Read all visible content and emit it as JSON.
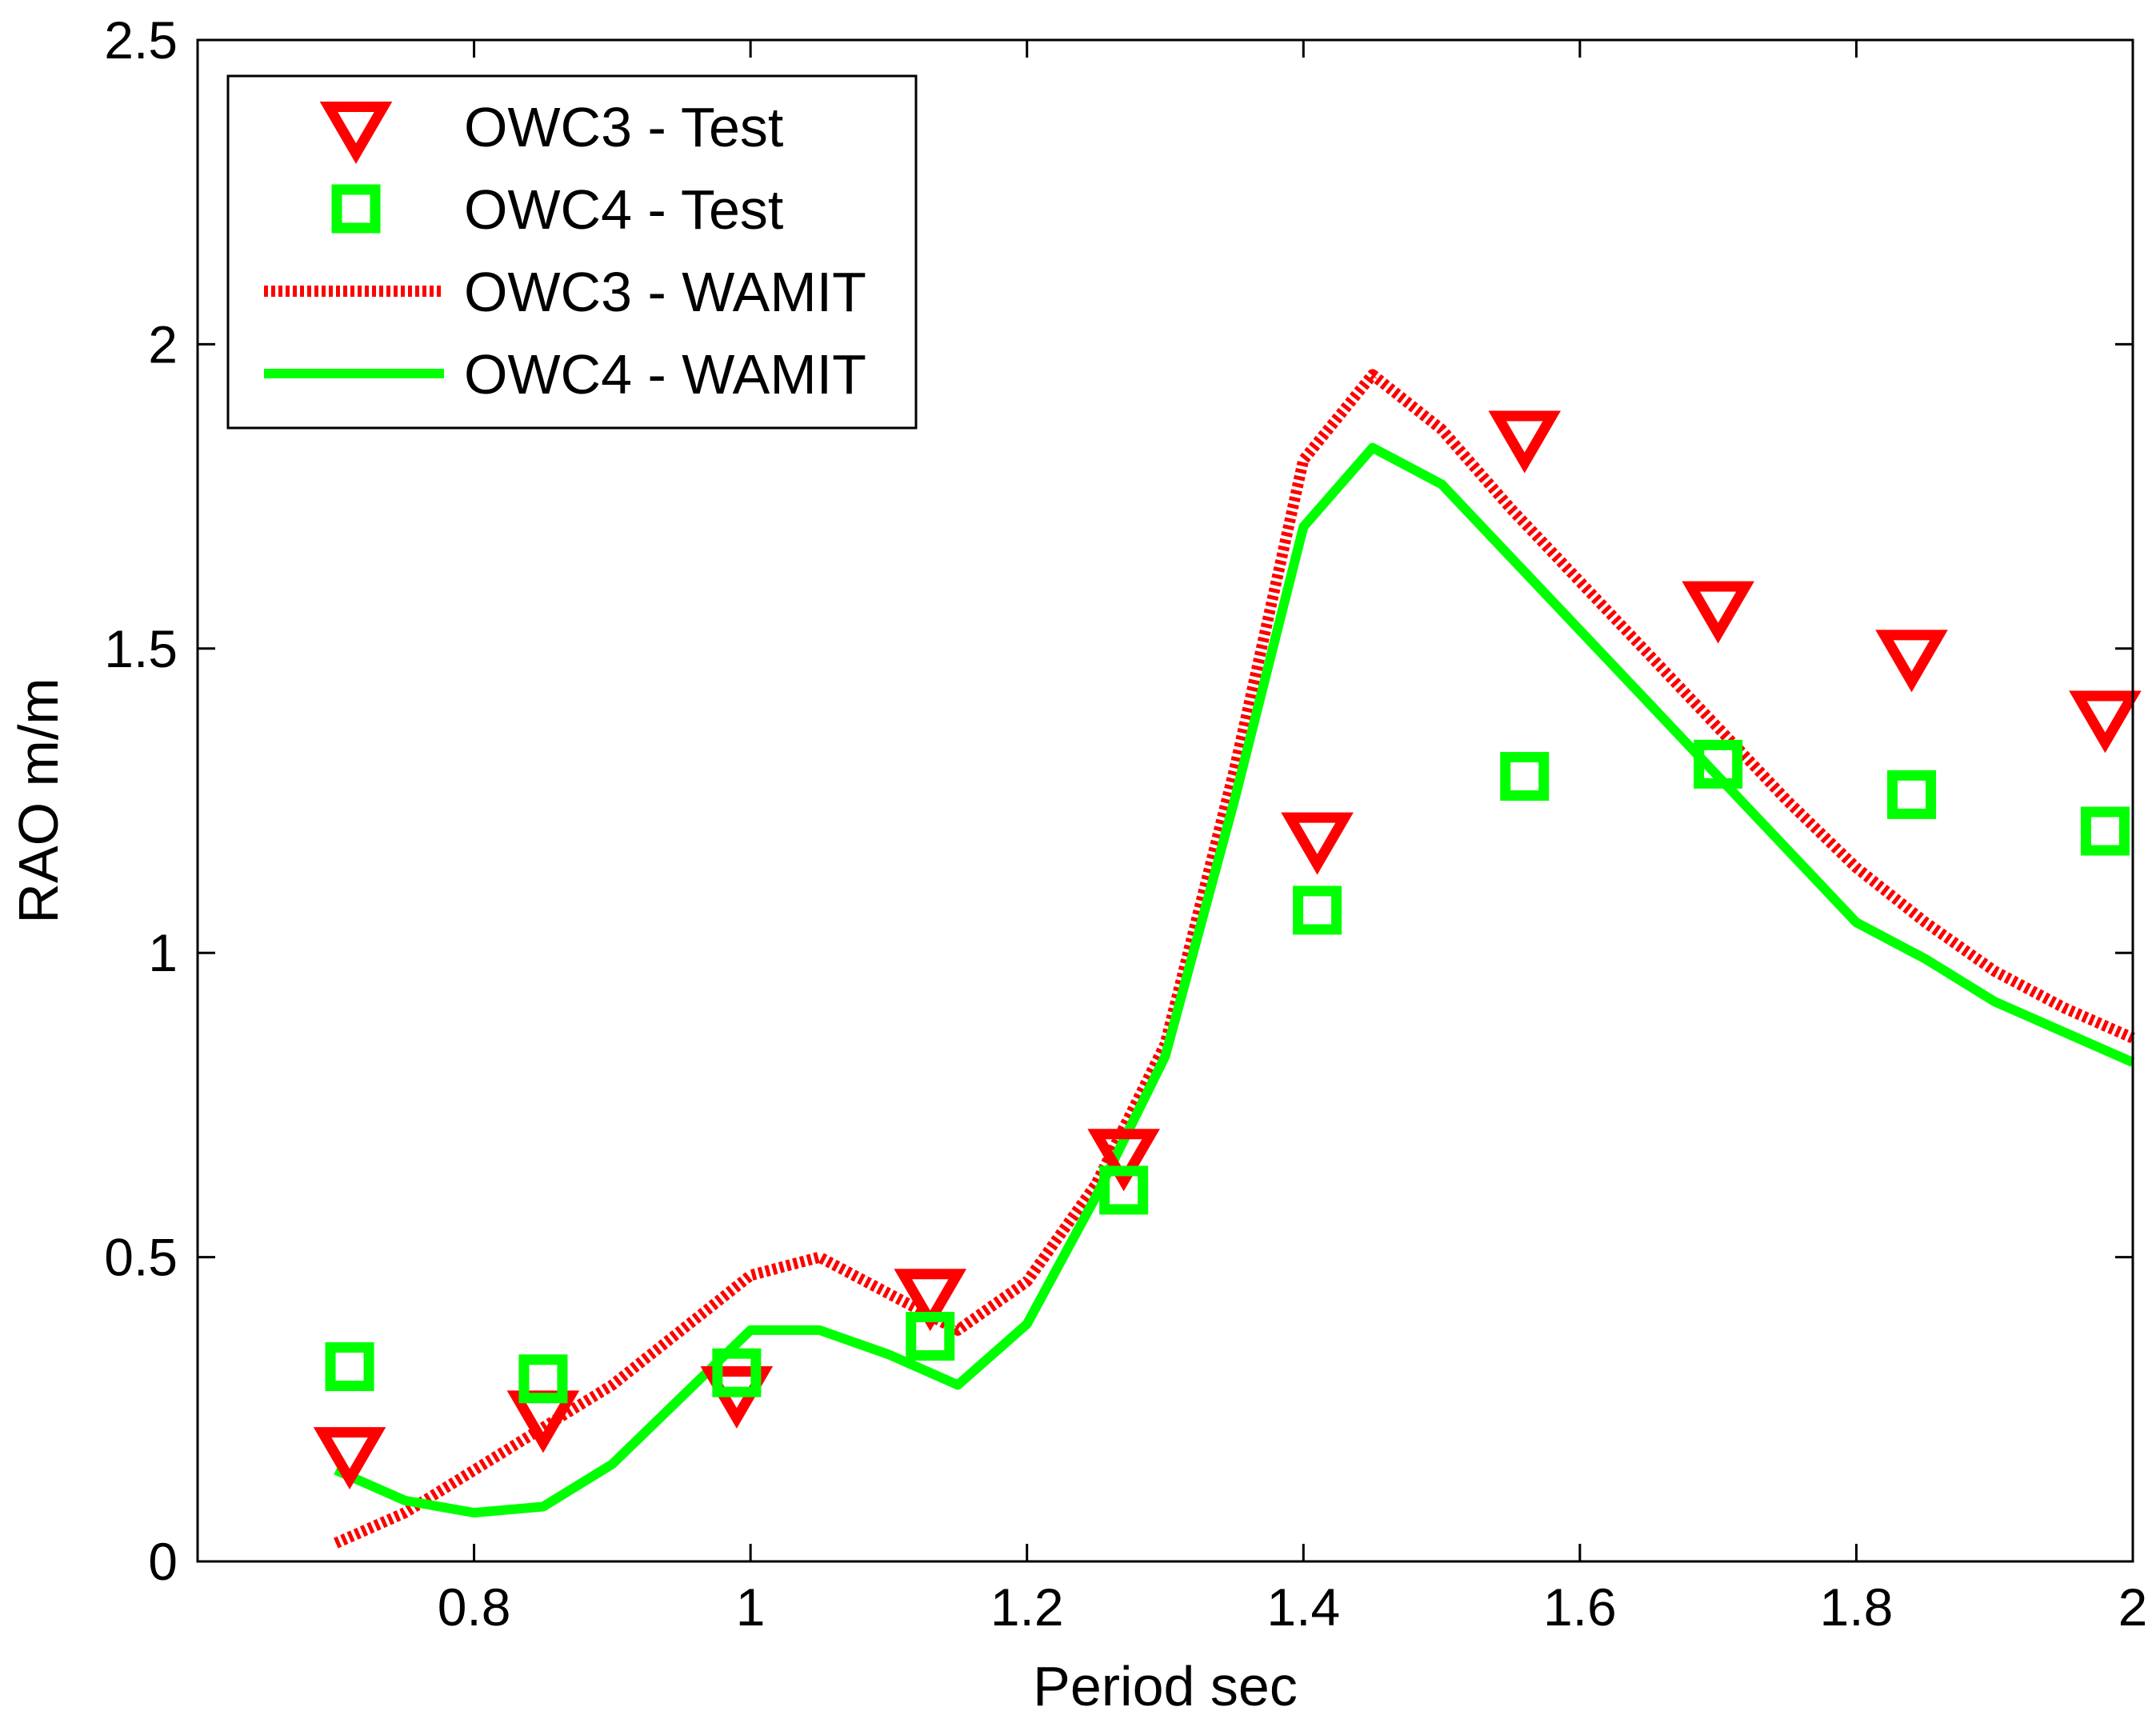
{
  "chart_data": {
    "type": "line",
    "title": "",
    "xlabel": "Period sec",
    "ylabel": "RAO m/m",
    "xlim": [
      0.6,
      2.0
    ],
    "ylim": [
      0,
      2.5
    ],
    "xticks": [
      0.8,
      1.0,
      1.2,
      1.4,
      1.6,
      1.8,
      2.0
    ],
    "xtick_labels": [
      "0.8",
      "1",
      "1.2",
      "1.4",
      "1.6",
      "1.8",
      "2"
    ],
    "yticks": [
      0,
      0.5,
      1.0,
      1.5,
      2.0,
      2.5
    ],
    "ytick_labels": [
      "0",
      "0.5",
      "1",
      "1.5",
      "2",
      "2.5"
    ],
    "grid": false,
    "legend_position": "top-left",
    "series": [
      {
        "name": "OWC3 - Test",
        "style": "markers",
        "marker": "triangle-down",
        "color": "#ff0000",
        "x": [
          0.71,
          0.85,
          0.99,
          1.13,
          1.27,
          1.41,
          1.56,
          1.7,
          1.84,
          1.98
        ],
        "y": [
          0.18,
          0.24,
          0.28,
          0.44,
          0.67,
          1.19,
          1.85,
          1.57,
          1.49,
          1.39
        ]
      },
      {
        "name": "OWC4 - Test",
        "style": "markers",
        "marker": "square",
        "color": "#00ff00",
        "x": [
          0.71,
          0.85,
          0.99,
          1.13,
          1.27,
          1.41,
          1.56,
          1.7,
          1.84,
          1.98
        ],
        "y": [
          0.32,
          0.3,
          0.31,
          0.37,
          0.61,
          1.07,
          1.29,
          1.31,
          1.26,
          1.2
        ]
      },
      {
        "name": "OWC3 - WAMIT",
        "style": "dotted-line",
        "color": "#ff0000",
        "x": [
          0.7,
          0.75,
          0.8,
          0.85,
          0.9,
          0.95,
          1.0,
          1.05,
          1.1,
          1.15,
          1.2,
          1.25,
          1.3,
          1.35,
          1.4,
          1.45,
          1.5,
          1.55,
          1.6,
          1.65,
          1.7,
          1.75,
          1.8,
          1.85,
          1.9,
          1.95,
          2.0
        ],
        "y": [
          0.03,
          0.08,
          0.15,
          0.22,
          0.29,
          0.38,
          0.47,
          0.5,
          0.44,
          0.38,
          0.46,
          0.62,
          0.85,
          1.3,
          1.81,
          1.95,
          1.86,
          1.73,
          1.61,
          1.49,
          1.37,
          1.25,
          1.14,
          1.05,
          0.97,
          0.91,
          0.86
        ]
      },
      {
        "name": "OWC4 - WAMIT",
        "style": "solid-line",
        "color": "#00ff00",
        "x": [
          0.7,
          0.75,
          0.8,
          0.85,
          0.9,
          0.95,
          1.0,
          1.05,
          1.1,
          1.15,
          1.2,
          1.25,
          1.3,
          1.35,
          1.4,
          1.45,
          1.5,
          1.55,
          1.6,
          1.65,
          1.7,
          1.75,
          1.8,
          1.85,
          1.9,
          1.95,
          2.0
        ],
        "y": [
          0.15,
          0.1,
          0.08,
          0.09,
          0.16,
          0.27,
          0.38,
          0.38,
          0.34,
          0.29,
          0.39,
          0.6,
          0.83,
          1.25,
          1.7,
          1.83,
          1.77,
          1.65,
          1.53,
          1.41,
          1.29,
          1.17,
          1.05,
          0.99,
          0.92,
          0.87,
          0.82
        ]
      }
    ]
  }
}
